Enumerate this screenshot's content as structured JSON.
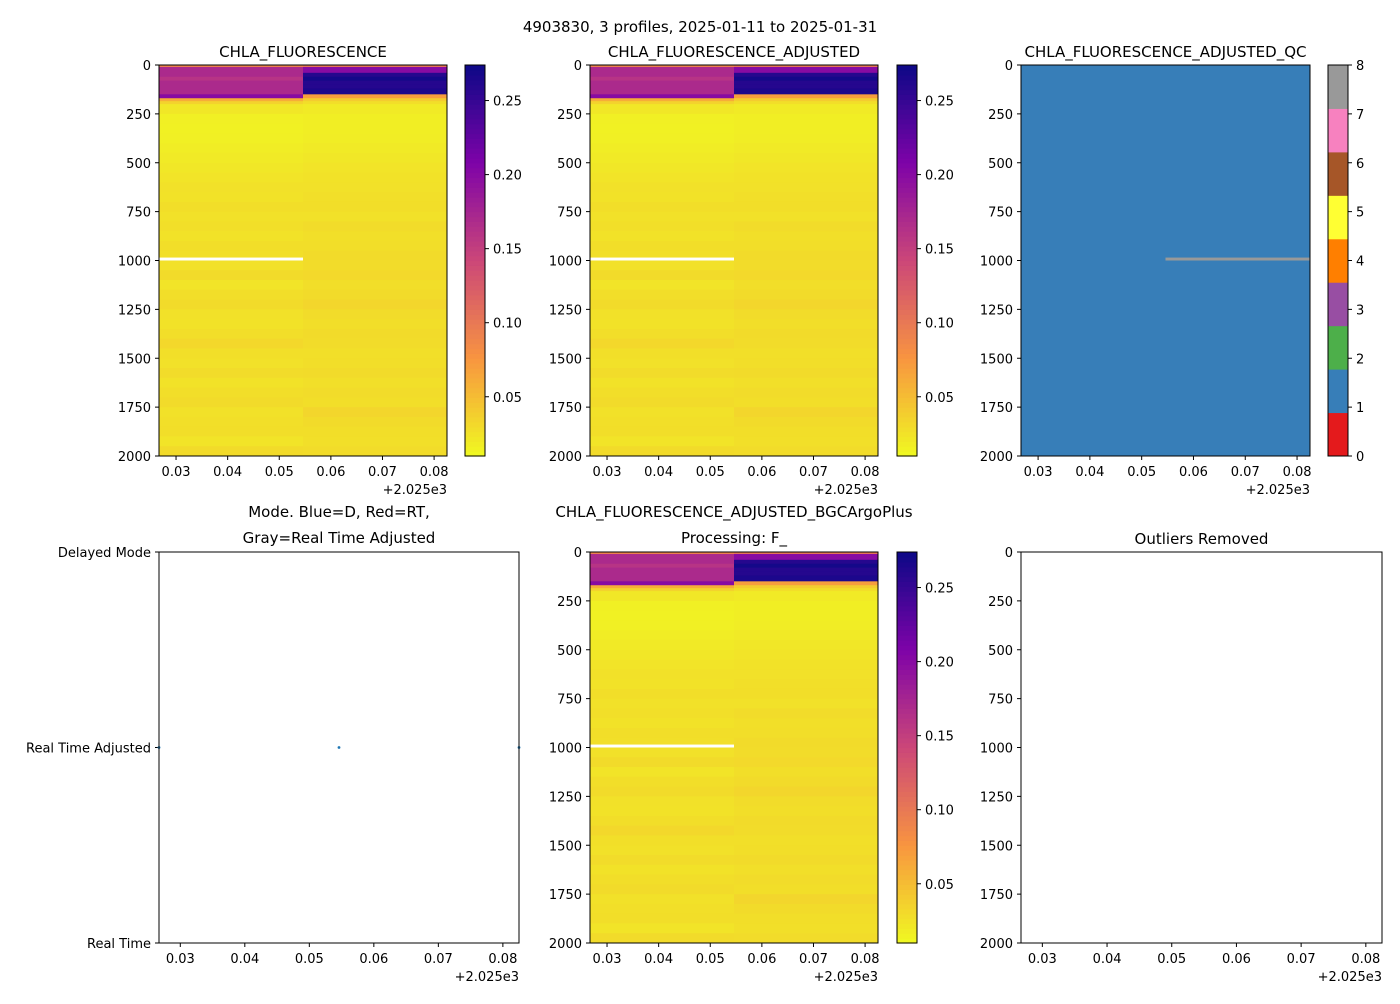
{
  "suptitle": "4903830, 3 profiles, 2025-01-11 to 2025-01-31",
  "chart_data": {
    "type": "heatmap",
    "x_offset_label": "+2.025e3",
    "x_ticks": [
      0.03,
      0.04,
      0.05,
      0.06,
      0.07,
      0.08
    ],
    "x_tick_labels": [
      "0.03",
      "0.04",
      "0.05",
      "0.06",
      "0.07",
      "0.08"
    ],
    "xlim": [
      0.0267,
      0.0825
    ],
    "column_edges": [
      0.0267,
      0.0546,
      0.0825
    ],
    "profile_times": [
      0.0267,
      0.0546,
      0.0825
    ],
    "depth_ticks": [
      0,
      250,
      500,
      750,
      1000,
      1250,
      1500,
      1750,
      2000
    ],
    "depth_tick_labels": [
      "0",
      "250",
      "500",
      "750",
      "1000",
      "1250",
      "1500",
      "1750",
      "2000"
    ],
    "ylim": [
      2000,
      0
    ],
    "colorbar": {
      "range": [
        0.01,
        0.274
      ],
      "ticks": [
        0.05,
        0.1,
        0.15,
        0.2,
        0.25
      ],
      "tick_labels": [
        "0.05",
        "0.10",
        "0.15",
        "0.20",
        "0.25"
      ],
      "colormap": "plasma_r",
      "stops": [
        "#f0f921",
        "#f89540",
        "#cc4778",
        "#7e03a8",
        "#0d0887"
      ]
    },
    "band_edges": [
      0,
      10,
      40,
      60,
      80,
      100,
      120,
      150,
      170,
      185,
      200,
      250,
      300,
      350,
      400,
      450,
      500,
      550,
      600,
      650,
      700,
      750,
      800,
      850,
      900,
      950,
      1000,
      1050,
      1100,
      1150,
      1200,
      1250,
      1300,
      1350,
      1400,
      1450,
      1500,
      1550,
      1600,
      1650,
      1700,
      1750,
      1800,
      1850,
      1900,
      1950,
      2000
    ],
    "profiles": [
      {
        "values": [
          0.09,
          0.17,
          0.17,
          0.16,
          0.17,
          0.17,
          0.17,
          0.2,
          0.06,
          0.035,
          0.022,
          0.016,
          0.015,
          0.016,
          0.018,
          0.02,
          0.022,
          0.024,
          0.026,
          0.025,
          0.028,
          0.026,
          0.027,
          0.025,
          0.028,
          0.027,
          0.026,
          0.03,
          0.024,
          0.028,
          0.03,
          0.026,
          0.025,
          0.028,
          0.032,
          0.027,
          0.026,
          0.029,
          0.025,
          0.028,
          0.03,
          0.026,
          0.027,
          0.028,
          0.024,
          0.03
        ],
        "missing_depth": [
          985,
          1000
        ]
      },
      {
        "values": [
          0.1,
          0.2,
          0.26,
          0.27,
          0.26,
          0.26,
          0.265,
          0.07,
          0.04,
          0.028,
          0.02,
          0.017,
          0.017,
          0.018,
          0.02,
          0.022,
          0.024,
          0.025,
          0.026,
          0.027,
          0.028,
          0.026,
          0.029,
          0.027,
          0.028,
          0.03,
          0.029,
          0.031,
          0.028,
          0.03,
          0.033,
          0.029,
          0.028,
          0.03,
          0.029,
          0.027,
          0.028,
          0.03,
          0.027,
          0.029,
          0.028,
          0.033,
          0.03,
          0.028,
          0.027,
          0.029
        ],
        "missing_depth": null
      }
    ],
    "panels": [
      {
        "title": "CHLA_FLUORESCENCE",
        "kind": "heat"
      },
      {
        "title": "CHLA_FLUORESCENCE_ADJUSTED",
        "kind": "heat"
      },
      {
        "title": "CHLA_FLUORESCENCE_ADJUSTED_QC",
        "kind": "qc"
      },
      {
        "title": "Mode. Blue=D, Red=RT,",
        "title2": "Gray=Real Time Adjusted",
        "kind": "mode"
      },
      {
        "title": "CHLA_FLUORESCENCE_ADJUSTED_BGCArgoPlus",
        "title2": "Processing: F_",
        "kind": "heat"
      },
      {
        "title": "Outliers Removed",
        "kind": "empty"
      }
    ],
    "qc": {
      "values": [
        1,
        1
      ],
      "flag8_depth_right": [
        985,
        1000
      ],
      "colorbar_range": [
        0,
        8
      ],
      "ticks": [
        "0",
        "1",
        "2",
        "3",
        "4",
        "5",
        "6",
        "7",
        "8"
      ],
      "colors": [
        "#e41a1c",
        "#377eb8",
        "#4daf4a",
        "#984ea3",
        "#ff7f00",
        "#ffff33",
        "#a65628",
        "#f781bf",
        "#999999"
      ]
    },
    "mode": {
      "y_tick_labels": [
        "Delayed Mode",
        "Real Time Adjusted",
        "Real Time"
      ],
      "points": [
        {
          "x": 0.0267,
          "y": "Real Time Adjusted"
        },
        {
          "x": 0.0546,
          "y": "Real Time Adjusted"
        },
        {
          "x": 0.0825,
          "y": "Real Time Adjusted"
        }
      ],
      "point_color": "#1f77b4"
    }
  }
}
